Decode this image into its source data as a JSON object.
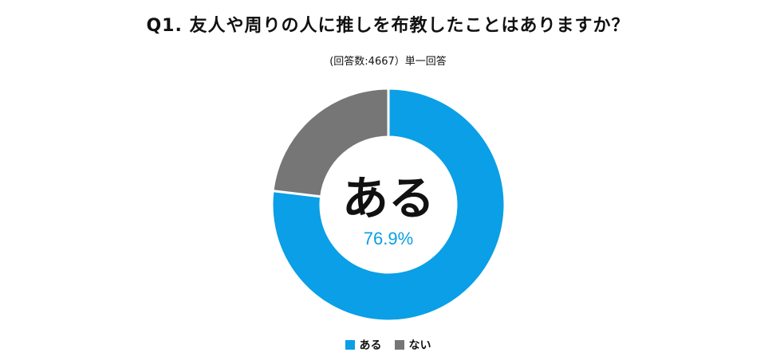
{
  "chart_data": {
    "type": "pie",
    "title": "Q1. 友人や周りの人に推しを布教したことはありますか？",
    "subtitle": "(回答数:4667）単一回答",
    "categories": [
      "ある",
      "ない"
    ],
    "values": [
      76.9,
      23.1
    ],
    "colors": [
      "#0a9fe6",
      "#767676"
    ],
    "center_label": "ある",
    "center_value": "76.9%",
    "legend_position": "bottom"
  }
}
